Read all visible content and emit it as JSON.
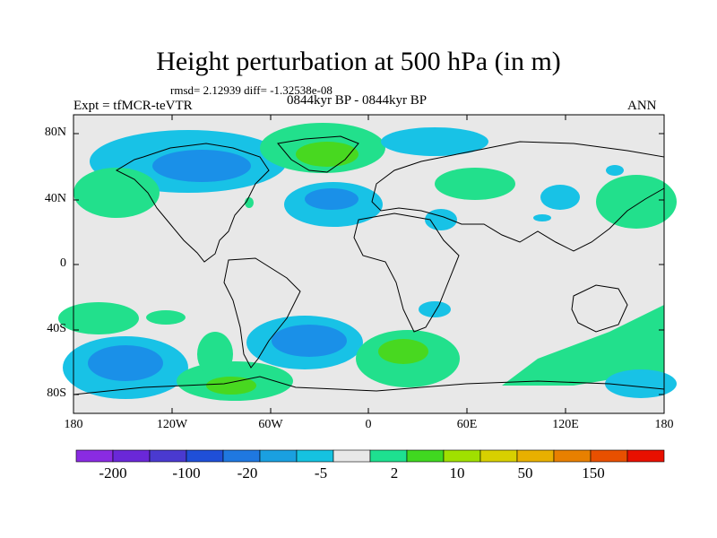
{
  "title": "Height perturbation at 500 hPa (in m)",
  "stats_line": "rmsd= 2.12939 diff= -1.32538e-08",
  "period": "0844kyr BP - 0844kyr BP",
  "experiment": "Expt = tfMCR-teVTR",
  "season": "ANN",
  "lat_labels": [
    "80N",
    "40N",
    "0",
    "40S",
    "80S"
  ],
  "lon_labels": [
    "180",
    "120W",
    "60W",
    "0",
    "60E",
    "120E",
    "180"
  ],
  "colorbar": {
    "labels": [
      "-200",
      "-100",
      "-20",
      "-5",
      "2",
      "10",
      "50",
      "150"
    ],
    "colors": [
      "#8a2be2",
      "#6a28d8",
      "#4a3ad0",
      "#1f4fd8",
      "#1f78e0",
      "#1aa0e0",
      "#15c2e0",
      "#e8e8e8",
      "#1ee090",
      "#40d820",
      "#a0e000",
      "#d8d000",
      "#e8b000",
      "#e88000",
      "#e85000",
      "#e81000"
    ]
  },
  "colors": {
    "background": "#e8e8e8",
    "positive_small": "#22e08c",
    "positive_mid": "#48d820",
    "negative_small": "#18c2e6",
    "negative_mid": "#1a90e8"
  }
}
